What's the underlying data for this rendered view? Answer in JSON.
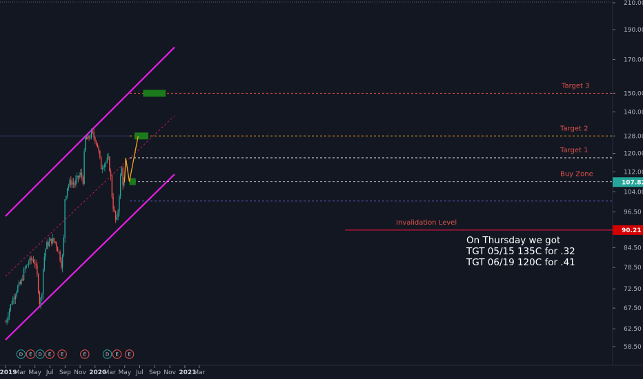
{
  "chart_data": {
    "type": "candlestick",
    "title": "",
    "y_scale": "log",
    "y_ticks": [
      "58.50",
      "62.50",
      "67.50",
      "72.50",
      "78.50",
      "84.50",
      "90.21",
      "96.50",
      "104.00",
      "107.82",
      "112.00",
      "120.00",
      "128.00",
      "140.00",
      "150.00",
      "170.00",
      "190.00",
      "210.00"
    ],
    "y_tick_values": [
      58.5,
      62.5,
      67.5,
      72.5,
      78.5,
      84.5,
      null,
      96.5,
      104,
      null,
      112,
      120,
      128,
      140,
      150,
      170,
      190,
      210
    ],
    "x_ticks": [
      {
        "label": "2019",
        "date": "2019-01-01",
        "year": true
      },
      {
        "label": "Mar",
        "date": "2019-03-01",
        "year": false
      },
      {
        "label": "May",
        "date": "2019-05-01",
        "year": false
      },
      {
        "label": "Jul",
        "date": "2019-07-01",
        "year": false
      },
      {
        "label": "Sep",
        "date": "2019-09-01",
        "year": false
      },
      {
        "label": "Nov",
        "date": "2019-11-01",
        "year": false
      },
      {
        "label": "2020",
        "date": "2020-01-01",
        "year": true
      },
      {
        "label": "Mar",
        "date": "2020-03-01",
        "year": false
      },
      {
        "label": "May",
        "date": "2020-05-01",
        "year": false
      },
      {
        "label": "Jul",
        "date": "2020-07-01",
        "year": false
      },
      {
        "label": "Sep",
        "date": "2020-09-01",
        "year": false
      },
      {
        "label": "Nov",
        "date": "2020-11-01",
        "year": false
      },
      {
        "label": "2021",
        "date": "2021-01-01",
        "year": true
      },
      {
        "label": "Mar",
        "date": "2021-03-01",
        "year": false
      }
    ],
    "price_series": [
      {
        "date": "2019-01-02",
        "price": 64
      },
      {
        "date": "2019-01-15",
        "price": 67
      },
      {
        "date": "2019-02-01",
        "price": 70
      },
      {
        "date": "2019-02-20",
        "price": 73
      },
      {
        "date": "2019-03-05",
        "price": 74
      },
      {
        "date": "2019-03-20",
        "price": 78
      },
      {
        "date": "2019-04-05",
        "price": 80
      },
      {
        "date": "2019-04-20",
        "price": 81
      },
      {
        "date": "2019-05-01",
        "price": 80
      },
      {
        "date": "2019-05-10",
        "price": 76
      },
      {
        "date": "2019-05-20",
        "price": 69
      },
      {
        "date": "2019-05-28",
        "price": 70
      },
      {
        "date": "2019-06-05",
        "price": 80
      },
      {
        "date": "2019-06-15",
        "price": 85
      },
      {
        "date": "2019-06-25",
        "price": 86
      },
      {
        "date": "2019-07-10",
        "price": 87
      },
      {
        "date": "2019-07-25",
        "price": 86
      },
      {
        "date": "2019-08-10",
        "price": 82
      },
      {
        "date": "2019-08-18",
        "price": 79
      },
      {
        "date": "2019-08-26",
        "price": 85
      },
      {
        "date": "2019-08-28",
        "price": 100
      },
      {
        "date": "2019-09-10",
        "price": 106
      },
      {
        "date": "2019-09-25",
        "price": 108
      },
      {
        "date": "2019-10-10",
        "price": 107
      },
      {
        "date": "2019-10-25",
        "price": 110
      },
      {
        "date": "2019-11-05",
        "price": 111
      },
      {
        "date": "2019-11-15",
        "price": 108
      },
      {
        "date": "2019-11-20",
        "price": 127
      },
      {
        "date": "2019-12-01",
        "price": 126
      },
      {
        "date": "2019-12-10",
        "price": 128
      },
      {
        "date": "2019-12-20",
        "price": 129
      },
      {
        "date": "2019-12-31",
        "price": 127
      },
      {
        "date": "2020-01-08",
        "price": 125
      },
      {
        "date": "2020-01-15",
        "price": 121
      },
      {
        "date": "2020-01-25",
        "price": 114
      },
      {
        "date": "2020-02-10",
        "price": 116
      },
      {
        "date": "2020-02-25",
        "price": 117
      },
      {
        "date": "2020-03-05",
        "price": 110
      },
      {
        "date": "2020-03-12",
        "price": 100
      },
      {
        "date": "2020-03-20",
        "price": 96
      },
      {
        "date": "2020-03-28",
        "price": 92
      },
      {
        "date": "2020-04-05",
        "price": 98
      },
      {
        "date": "2020-04-12",
        "price": 108
      },
      {
        "date": "2020-04-18",
        "price": 114
      },
      {
        "date": "2020-04-25",
        "price": 106
      },
      {
        "date": "2020-04-30",
        "price": 107.82
      }
    ],
    "projection_path": [
      {
        "date": "2020-04-30",
        "price": 107.82
      },
      {
        "date": "2020-05-05",
        "price": 118
      },
      {
        "date": "2020-05-20",
        "price": 108
      },
      {
        "date": "2020-06-25",
        "price": 128
      }
    ],
    "channel": {
      "upper": [
        {
          "date": "2019-01-01",
          "price": 95
        },
        {
          "date": "2020-11-20",
          "price": 178
        }
      ],
      "middle": [
        {
          "date": "2019-01-01",
          "price": 76
        },
        {
          "date": "2020-11-20",
          "price": 138
        }
      ],
      "lower": [
        {
          "date": "2019-01-01",
          "price": 60
        },
        {
          "date": "2020-11-20",
          "price": 111
        }
      ]
    },
    "levels": [
      {
        "name": "Target 3",
        "price": 150,
        "color": "#e0524a",
        "zone_start": "2020-07-15",
        "zone_end": "2020-10-15"
      },
      {
        "name": "Target 2",
        "price": 128,
        "color": "#e0524a",
        "zone_start": "2020-06-10",
        "zone_end": "2020-08-05"
      },
      {
        "name": "Target 1",
        "price": 118,
        "color": "#e0524a",
        "zone_start": null,
        "zone_end": null
      },
      {
        "name": "Buy Zone",
        "price": 108,
        "color": "#e0524a",
        "zone_start": "2020-05-20",
        "zone_end": "2020-06-15"
      },
      {
        "name": "Invalidation Level",
        "price": 90.21,
        "color": "#e0524a",
        "zone_start": null,
        "zone_end": null
      }
    ],
    "current_price": "107.82",
    "invalidation_price": "90.21",
    "events": [
      {
        "date": "2019-03-05",
        "letters": [
          "D",
          "E"
        ]
      },
      {
        "date": "2019-05-22",
        "letters": [
          "D",
          "E"
        ]
      },
      {
        "date": "2019-08-20",
        "letters": [
          "E"
        ]
      },
      {
        "date": "2019-11-20",
        "letters": [
          "E"
        ]
      },
      {
        "date": "2020-02-20",
        "letters": [
          "D",
          "E"
        ]
      },
      {
        "date": "2020-05-20",
        "letters": [
          "E"
        ]
      }
    ]
  },
  "note": {
    "line1": "On Thursday we got",
    "line2": "TGT 05/15 135C for .32",
    "line3": "TGT 06/19 120C for .41"
  },
  "colors": {
    "background": "#131722",
    "channel": "#e81ee8",
    "up_candle": "#26a69a",
    "down_candle": "#ef5350",
    "level_label": "#e0524a",
    "zone": "#1b7a1b",
    "projection": "#f5a623"
  }
}
